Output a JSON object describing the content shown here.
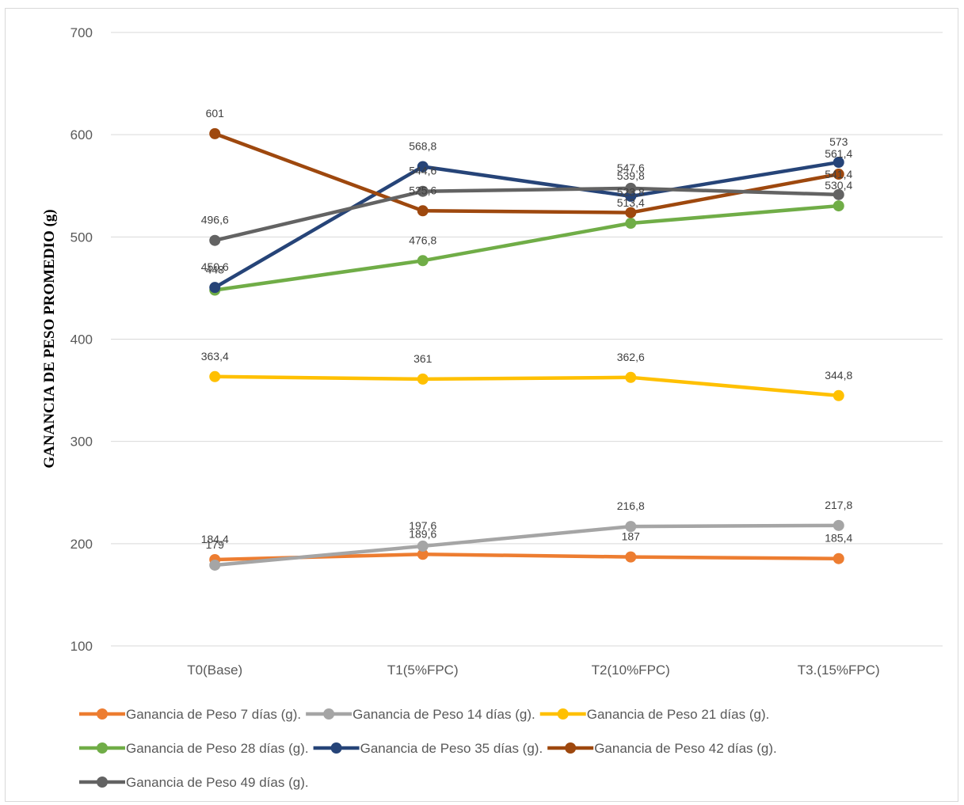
{
  "chart_data": {
    "type": "line",
    "title": "",
    "xlabel": "",
    "ylabel": "GANANCIA DE PESO PROMEDIO (g)",
    "ylim": [
      100,
      700
    ],
    "yticks": [
      "100",
      "200",
      "300",
      "400",
      "500",
      "600",
      "700"
    ],
    "grid": true,
    "legend_position": "bottom",
    "categories": [
      "T0(Base)",
      "T1(5%FPC)",
      "T2(10%FPC)",
      "T3.(15%FPC)"
    ],
    "series": [
      {
        "name": "Ganancia de Peso 7 días (g).",
        "color": "#ED7D31",
        "values": [
          184.4,
          189.6,
          187,
          185.4
        ],
        "labels": [
          "184,4",
          "189,6",
          "187",
          "185,4"
        ]
      },
      {
        "name": "Ganancia de Peso 14 días (g).",
        "color": "#A5A5A5",
        "values": [
          179,
          197.6,
          216.8,
          217.8
        ],
        "labels": [
          "179",
          "197,6",
          "216,8",
          "217,8"
        ]
      },
      {
        "name": "Ganancia de Peso 21 días (g).",
        "color": "#FFC000",
        "values": [
          363.4,
          361,
          362.6,
          344.8
        ],
        "labels": [
          "363,4",
          "361",
          "362,6",
          "344,8"
        ]
      },
      {
        "name": "Ganancia de Peso 28 días (g).",
        "color": "#70AD47",
        "values": [
          448,
          476.8,
          513.4,
          530.4
        ],
        "labels": [
          "448",
          "476,8",
          "513,4",
          "530,4"
        ]
      },
      {
        "name": "Ganancia de Peso 35 días (g).",
        "color": "#264478",
        "values": [
          450.6,
          568.8,
          539.8,
          573
        ],
        "labels": [
          "450,6",
          "568,8",
          "539,8",
          "573"
        ]
      },
      {
        "name": "Ganancia de Peso 42 días (g).",
        "color": "#9E480E",
        "values": [
          601,
          525.6,
          523.8,
          561.4
        ],
        "labels": [
          "601",
          "525,6",
          "523,8",
          "561,4"
        ]
      },
      {
        "name": "Ganancia de Peso 49 días (g).",
        "color": "#636363",
        "values": [
          496.6,
          544.6,
          547.6,
          541.4
        ],
        "labels": [
          "496,6",
          "544,6",
          "547,6",
          "541,4"
        ]
      }
    ]
  }
}
